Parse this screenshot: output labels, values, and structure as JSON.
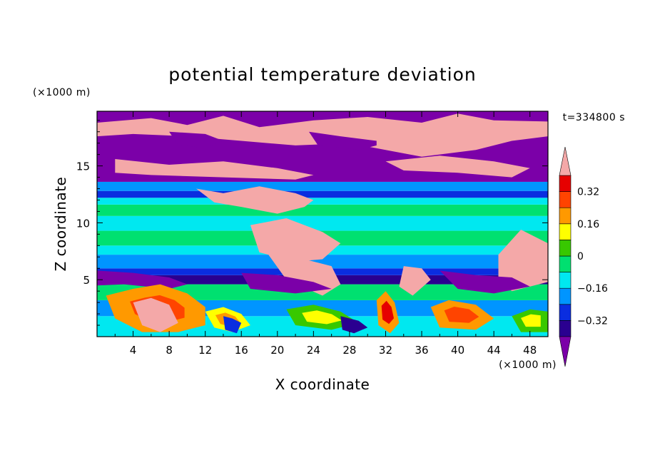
{
  "chart_data": {
    "type": "heatmap",
    "title": "potential temperature deviation",
    "xlabel": "X coordinate",
    "ylabel": "Z coordinate",
    "x_units": "(×1000 m)",
    "y_units": "(×1000 m)",
    "time_label": "t=334800 s",
    "xlim": [
      0,
      50
    ],
    "ylim": [
      0,
      19.8
    ],
    "x_ticks": [
      "4",
      "8",
      "12",
      "16",
      "20",
      "24",
      "28",
      "32",
      "36",
      "40",
      "44",
      "48"
    ],
    "y_ticks": [
      "5",
      "10",
      "15"
    ],
    "colorbar": {
      "labels": [
        "0.32",
        "0.16",
        "0",
        "−0.16",
        "−0.32"
      ],
      "levels": [
        -0.4,
        -0.32,
        -0.24,
        -0.16,
        -0.08,
        0,
        0.08,
        0.16,
        0.24,
        0.32,
        0.4
      ],
      "colors": [
        "#7b00a8",
        "#2a0090",
        "#0a2de0",
        "#0095ff",
        "#00e8f0",
        "#00e070",
        "#38c800",
        "#ffff00",
        "#ff9900",
        "#ff4400",
        "#e60000",
        "#f4a8a8"
      ]
    },
    "layers": [
      {
        "z_range": [
          0,
          5
        ],
        "description_value": "mixed positive/negative deviation"
      },
      {
        "z_range": [
          5,
          6
        ],
        "value": -0.36
      },
      {
        "z_range": [
          6,
          13.5
        ],
        "value": -0.12
      },
      {
        "z_range": [
          13.5,
          19.8
        ],
        "value": -0.4
      }
    ]
  }
}
